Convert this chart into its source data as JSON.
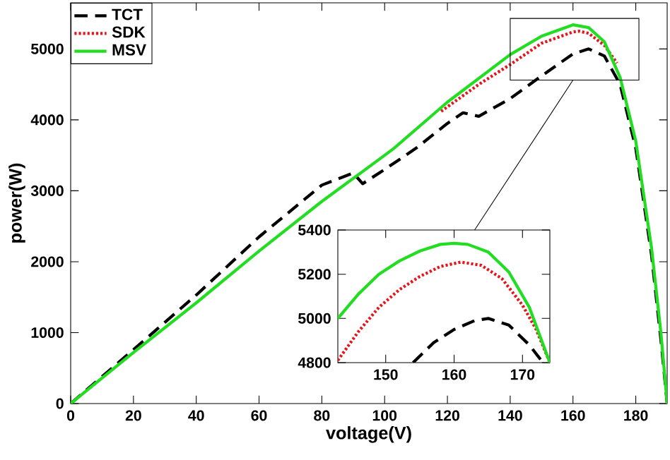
{
  "chart_data": [
    {
      "type": "line",
      "xlabel": "voltage(V)",
      "ylabel": "power(W)",
      "xlim": [
        0,
        190
      ],
      "ylim": [
        0,
        5650
      ],
      "xticks": [
        0,
        20,
        40,
        60,
        80,
        100,
        120,
        140,
        160,
        180
      ],
      "yticks": [
        0,
        1000,
        2000,
        3000,
        4000,
        5000
      ],
      "grid": false,
      "legend": "top left",
      "marker": "none",
      "series": [
        {
          "name": "TCT",
          "color": "#000000",
          "line_style": "dashed",
          "x": [
            0,
            20,
            40,
            60,
            80,
            90,
            93,
            100,
            110,
            120,
            125,
            130,
            140,
            150,
            160,
            165,
            170,
            175,
            180,
            185,
            188,
            190
          ],
          "values": [
            0,
            760,
            1530,
            2350,
            3080,
            3250,
            3100,
            3300,
            3600,
            3950,
            4100,
            4050,
            4300,
            4620,
            4930,
            5000,
            4900,
            4500,
            3600,
            2100,
            900,
            0
          ]
        },
        {
          "name": "SDK",
          "color": "#e8141b",
          "line_style": "dotted",
          "x": [
            118,
            130,
            140,
            150,
            160,
            162,
            165,
            170,
            174
          ],
          "values": [
            4120,
            4500,
            4780,
            5080,
            5240,
            5250,
            5220,
            5050,
            4800
          ]
        },
        {
          "name": "MSV",
          "color": "#22dd22",
          "line_style": "solid",
          "x": [
            0,
            20,
            40,
            60,
            80,
            100,
            103,
            120,
            140,
            150,
            160,
            165,
            170,
            175,
            180,
            185,
            188,
            190
          ],
          "values": [
            0,
            720,
            1420,
            2150,
            2850,
            3500,
            3600,
            4250,
            4920,
            5180,
            5340,
            5300,
            5100,
            4600,
            3700,
            2200,
            1000,
            0
          ]
        }
      ]
    },
    {
      "type": "line",
      "xlim": [
        143,
        174
      ],
      "ylim": [
        4800,
        5400
      ],
      "xticks": [
        150,
        160,
        170
      ],
      "yticks": [
        4800,
        5000,
        5200,
        5400
      ],
      "grid": false,
      "legend": false,
      "marker": "none",
      "series": [
        {
          "color": "#000000",
          "line_style": "dashed",
          "x": [
            154,
            157,
            160,
            163,
            165,
            168,
            171,
            173
          ],
          "values": [
            4800,
            4890,
            4950,
            4990,
            5000,
            4970,
            4880,
            4800
          ]
        },
        {
          "color": "#e8141b",
          "line_style": "dotted",
          "x": [
            143,
            146,
            149,
            152,
            155,
            158,
            161,
            164,
            167,
            170,
            172,
            174
          ],
          "values": [
            4810,
            4940,
            5050,
            5130,
            5190,
            5235,
            5255,
            5240,
            5180,
            5060,
            4950,
            4800
          ]
        },
        {
          "color": "#22dd22",
          "line_style": "solid",
          "x": [
            143,
            146,
            149,
            152,
            155,
            158,
            160,
            162,
            165,
            168,
            171,
            174
          ],
          "values": [
            5000,
            5110,
            5200,
            5260,
            5305,
            5335,
            5340,
            5335,
            5300,
            5210,
            5050,
            4800
          ]
        }
      ]
    }
  ]
}
